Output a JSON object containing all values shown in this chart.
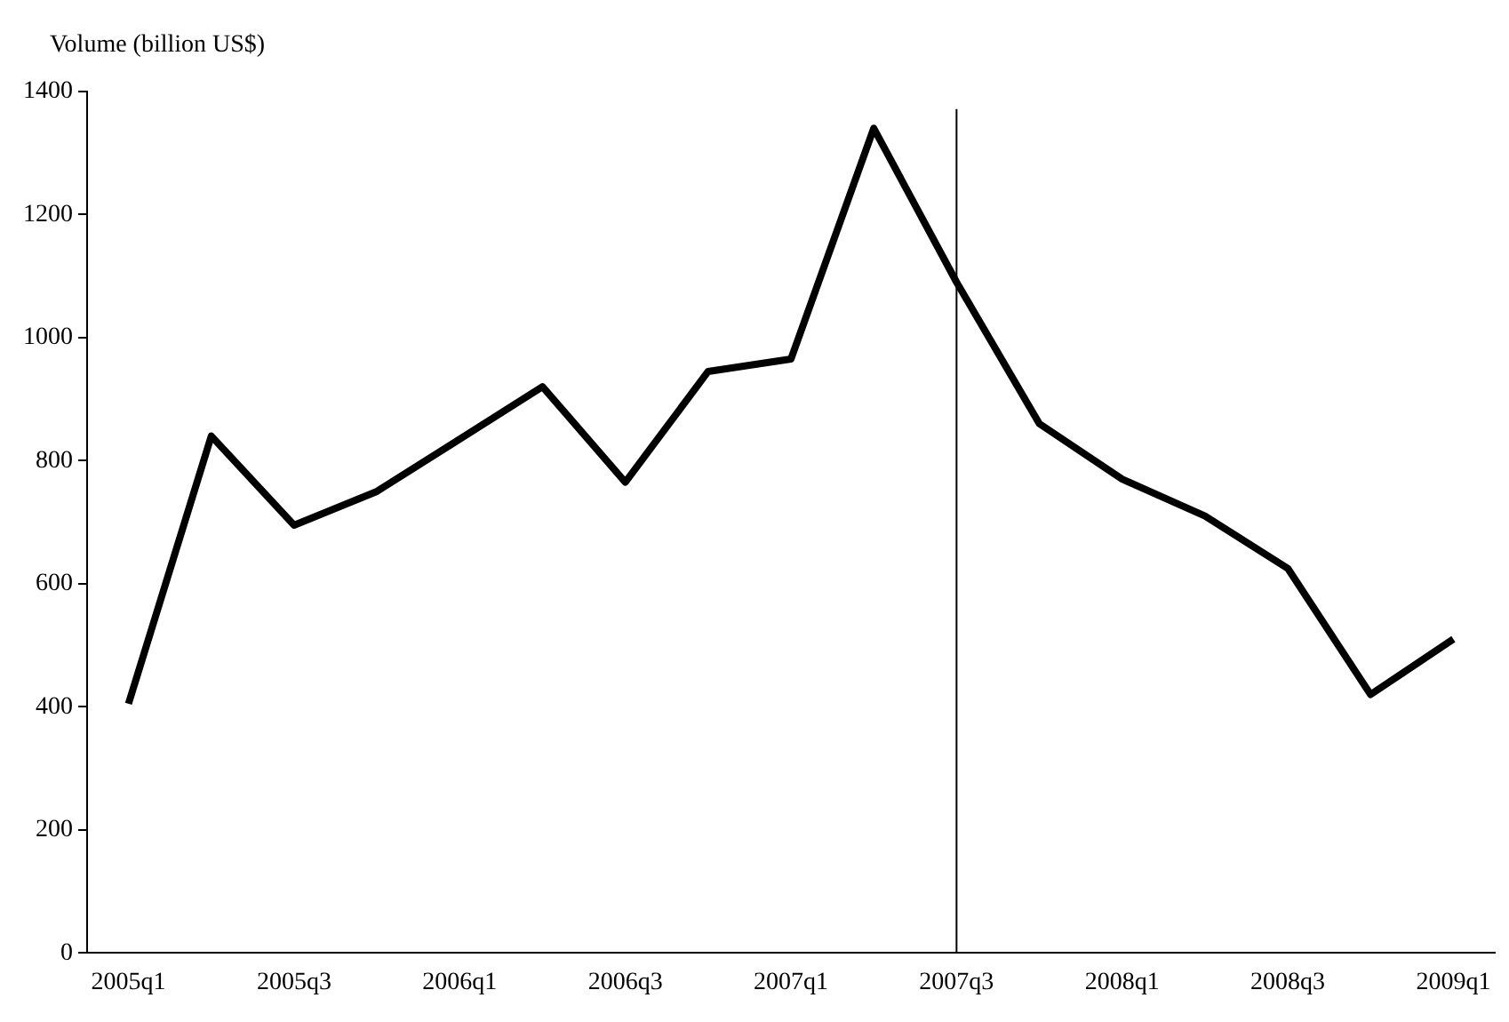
{
  "chart_data": {
    "type": "line",
    "ylabel": "Volume (billion US$)",
    "categories": [
      "2005q1",
      null,
      "2005q3",
      null,
      "2006q1",
      null,
      "2006q3",
      null,
      "2007q1",
      null,
      "2007q3",
      null,
      "2008q1",
      null,
      "2008q3",
      null,
      "2009q1"
    ],
    "series": [
      {
        "color": "#000000",
        "values": [
          405,
          840,
          695,
          750,
          835,
          920,
          765,
          945,
          965,
          1340,
          1090,
          860,
          770,
          710,
          625,
          420,
          510
        ]
      }
    ],
    "ylim": [
      0,
      1400
    ],
    "yticks": [
      0,
      200,
      400,
      600,
      800,
      1000,
      1200,
      1400
    ],
    "ref_lines": [
      {
        "axis": "x",
        "value": "2007q3",
        "color": "#000000"
      }
    ],
    "grid": false,
    "legend": false,
    "marker": "none",
    "line_style": "solid"
  }
}
